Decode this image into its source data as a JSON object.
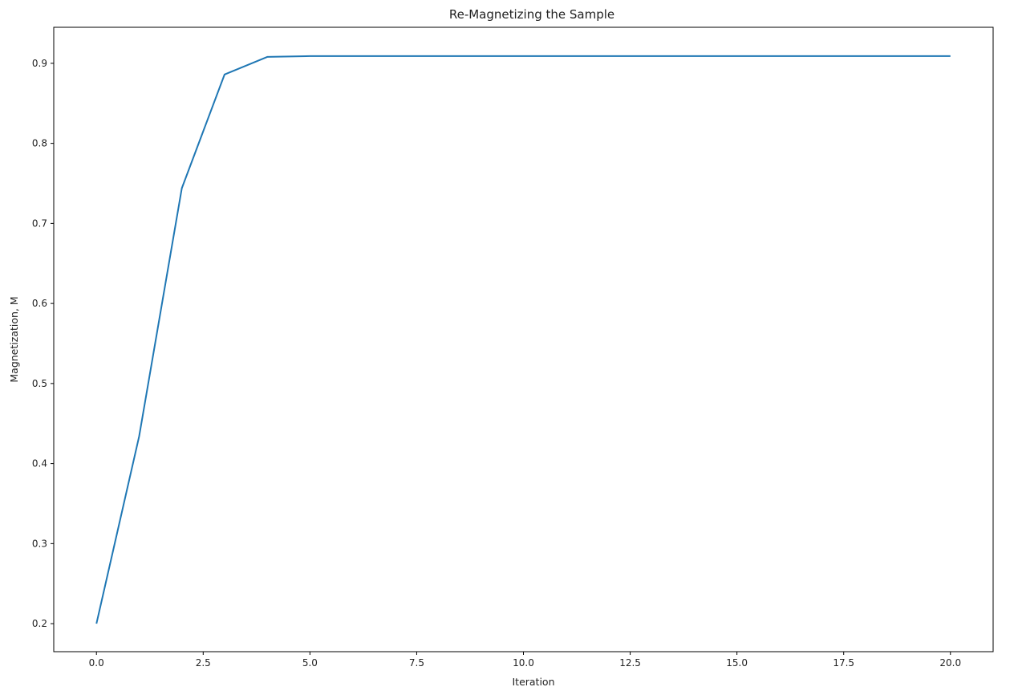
{
  "chart_data": {
    "type": "line",
    "title": "Re-Magnetizing the Sample",
    "xlabel": "Iteration",
    "ylabel": "Magnetization, M",
    "xlim": [
      -1.0,
      21.0
    ],
    "ylim": [
      0.165,
      0.945
    ],
    "xticks": [
      0.0,
      2.5,
      5.0,
      7.5,
      10.0,
      12.5,
      15.0,
      17.5,
      20.0
    ],
    "xtick_labels": [
      "0.0",
      "2.5",
      "5.0",
      "7.5",
      "10.0",
      "12.5",
      "15.0",
      "17.5",
      "20.0"
    ],
    "yticks": [
      0.2,
      0.3,
      0.4,
      0.5,
      0.6,
      0.7,
      0.8,
      0.9
    ],
    "ytick_labels": [
      "0.2",
      "0.3",
      "0.4",
      "0.5",
      "0.6",
      "0.7",
      "0.8",
      "0.9"
    ],
    "grid": false,
    "series": [
      {
        "color": "#1f77b4",
        "x": [
          0,
          1,
          2,
          3,
          4,
          5,
          6,
          7,
          8,
          9,
          10,
          11,
          12,
          13,
          14,
          15,
          16,
          17,
          18,
          19,
          20
        ],
        "y": [
          0.2,
          0.434,
          0.744,
          0.886,
          0.908,
          0.909,
          0.909,
          0.909,
          0.909,
          0.909,
          0.909,
          0.909,
          0.909,
          0.909,
          0.909,
          0.909,
          0.909,
          0.909,
          0.909,
          0.909,
          0.909
        ]
      }
    ]
  }
}
